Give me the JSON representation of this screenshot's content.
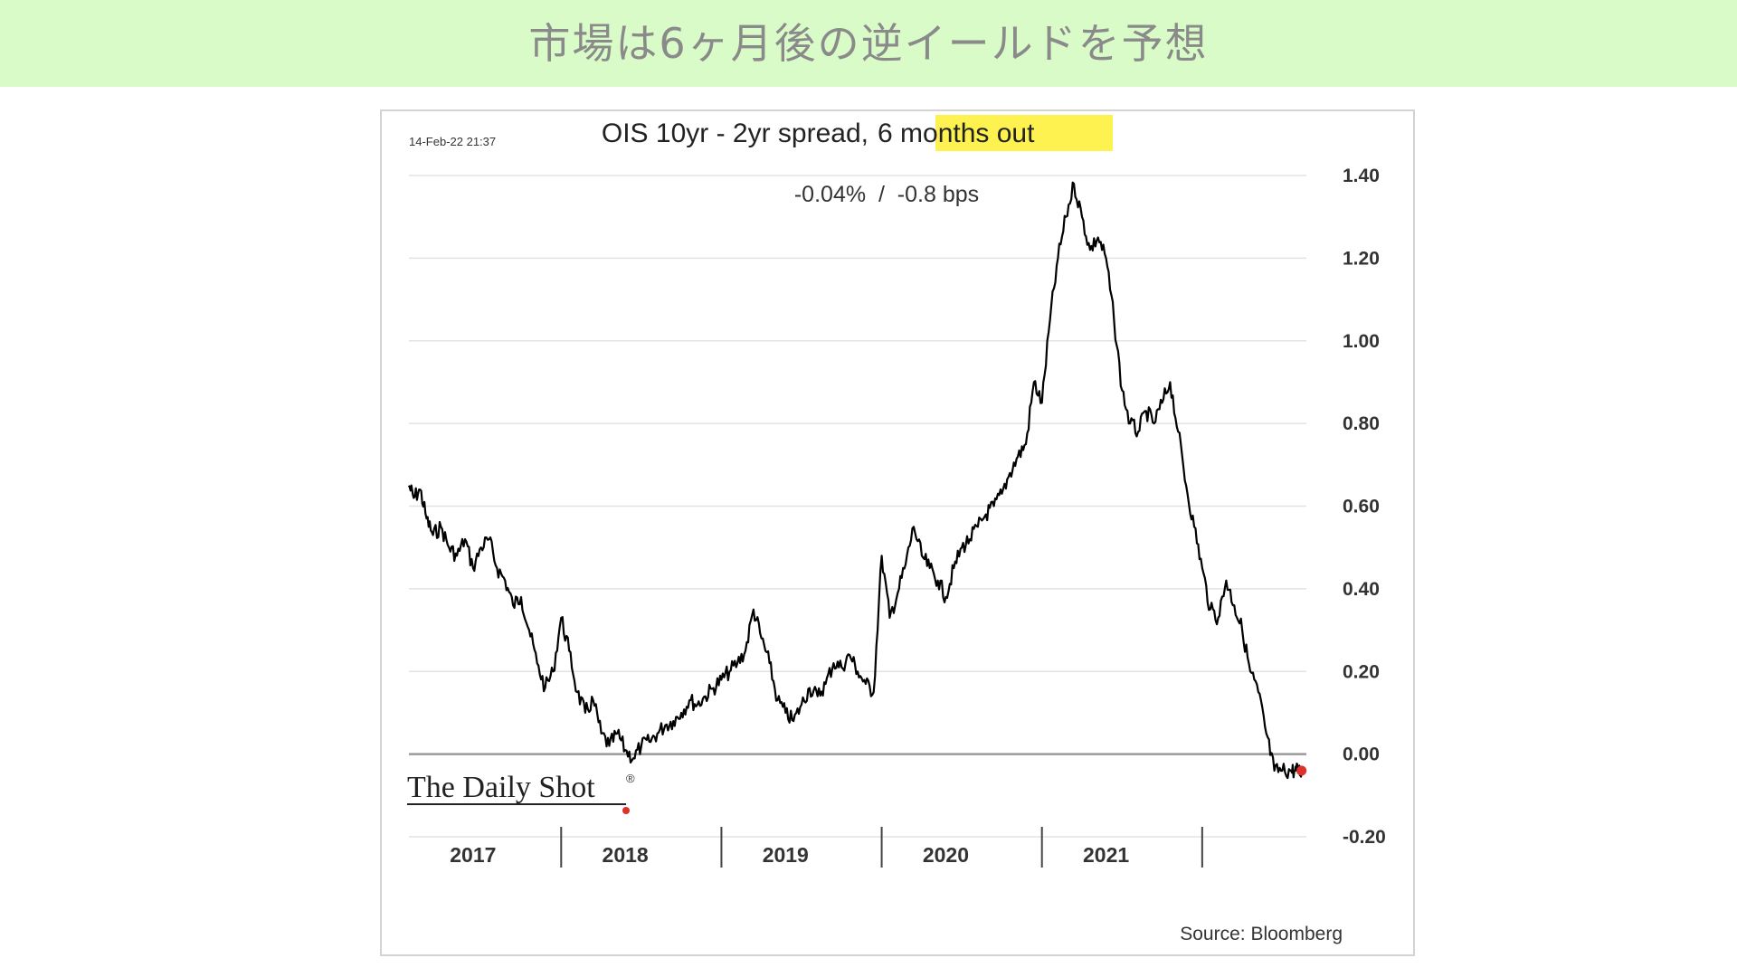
{
  "banner": {
    "title": "市場は6ヶ月後の逆イールドを予想",
    "background": "#d9fbc8"
  },
  "chart_data": {
    "type": "line",
    "title": "OIS 10yr - 2yr spread,",
    "title_highlight": "6 months out",
    "highlight_color": "#fdf24f",
    "subtitle": "-0.04%  /  -0.8 bps",
    "timestamp": "14-Feb-22 21:37",
    "source": "Source: Bloomberg",
    "logo": "The Daily Shot",
    "logo_mark": "®",
    "ylim": [
      -0.2,
      1.4
    ],
    "yticks": [
      "1.40",
      "1.20",
      "1.00",
      "0.80",
      "0.60",
      "0.40",
      "0.20",
      "0.00",
      "-0.20"
    ],
    "xlim": [
      2016.55,
      2022.15
    ],
    "year_labels": [
      {
        "label": "2017",
        "x": 2016.95
      },
      {
        "label": "2018",
        "x": 2017.9
      },
      {
        "label": "2019",
        "x": 2018.9
      },
      {
        "label": "2020",
        "x": 2019.9
      },
      {
        "label": "2021",
        "x": 2020.9
      }
    ],
    "year_dividers": [
      2017.5,
      2018.5,
      2019.5,
      2020.5,
      2021.5
    ],
    "gridlines": true,
    "legend": "none",
    "last_point": {
      "x": 2022.12,
      "y": -0.04,
      "color": "#e0302a"
    },
    "series": [
      {
        "color": "#000000",
        "x": [
          2016.55,
          2016.58,
          2016.62,
          2016.66,
          2016.7,
          2016.75,
          2016.8,
          2016.85,
          2016.9,
          2016.95,
          2017.0,
          2017.05,
          2017.1,
          2017.15,
          2017.2,
          2017.25,
          2017.3,
          2017.35,
          2017.4,
          2017.45,
          2017.5,
          2017.55,
          2017.6,
          2017.65,
          2017.7,
          2017.75,
          2017.8,
          2017.85,
          2017.9,
          2017.95,
          2018.0,
          2018.05,
          2018.1,
          2018.15,
          2018.2,
          2018.25,
          2018.3,
          2018.35,
          2018.4,
          2018.45,
          2018.5,
          2018.55,
          2018.6,
          2018.65,
          2018.7,
          2018.75,
          2018.8,
          2018.85,
          2018.9,
          2018.95,
          2019.0,
          2019.05,
          2019.1,
          2019.15,
          2019.2,
          2019.25,
          2019.3,
          2019.35,
          2019.4,
          2019.45,
          2019.5,
          2019.55,
          2019.6,
          2019.65,
          2019.7,
          2019.75,
          2019.8,
          2019.85,
          2019.9,
          2019.95,
          2020.0,
          2020.05,
          2020.1,
          2020.15,
          2020.2,
          2020.25,
          2020.3,
          2020.35,
          2020.4,
          2020.45,
          2020.5,
          2020.55,
          2020.6,
          2020.65,
          2020.7,
          2020.75,
          2020.8,
          2020.85,
          2020.9,
          2020.95,
          2021.0,
          2021.05,
          2021.1,
          2021.15,
          2021.2,
          2021.25,
          2021.3,
          2021.35,
          2021.4,
          2021.45,
          2021.5,
          2021.55,
          2021.6,
          2021.65,
          2021.7,
          2021.75,
          2021.8,
          2021.85,
          2021.9,
          2021.95,
          2022.0,
          2022.05,
          2022.08,
          2022.1,
          2022.12
        ],
        "values": [
          0.65,
          0.62,
          0.64,
          0.57,
          0.53,
          0.55,
          0.5,
          0.48,
          0.52,
          0.45,
          0.5,
          0.52,
          0.45,
          0.42,
          0.36,
          0.38,
          0.3,
          0.22,
          0.16,
          0.2,
          0.33,
          0.25,
          0.15,
          0.1,
          0.13,
          0.05,
          0.02,
          0.05,
          0.01,
          -0.01,
          0.02,
          0.03,
          0.05,
          0.07,
          0.08,
          0.1,
          0.13,
          0.12,
          0.14,
          0.16,
          0.18,
          0.2,
          0.22,
          0.25,
          0.35,
          0.28,
          0.22,
          0.13,
          0.1,
          0.08,
          0.12,
          0.16,
          0.14,
          0.17,
          0.22,
          0.21,
          0.24,
          0.2,
          0.17,
          0.15,
          0.48,
          0.33,
          0.39,
          0.46,
          0.55,
          0.48,
          0.45,
          0.42,
          0.38,
          0.45,
          0.5,
          0.52,
          0.55,
          0.58,
          0.6,
          0.63,
          0.68,
          0.72,
          0.75,
          0.9,
          0.85,
          1.05,
          1.2,
          1.3,
          1.38,
          1.3,
          1.22,
          1.25,
          1.2,
          1.05,
          0.88,
          0.8,
          0.78,
          0.83,
          0.8,
          0.85,
          0.9,
          0.78,
          0.65,
          0.55,
          0.45,
          0.35,
          0.33,
          0.42,
          0.36,
          0.3,
          0.2,
          0.15,
          0.05,
          -0.04,
          -0.04,
          -0.04,
          -0.04,
          -0.04,
          -0.04
        ]
      }
    ]
  }
}
